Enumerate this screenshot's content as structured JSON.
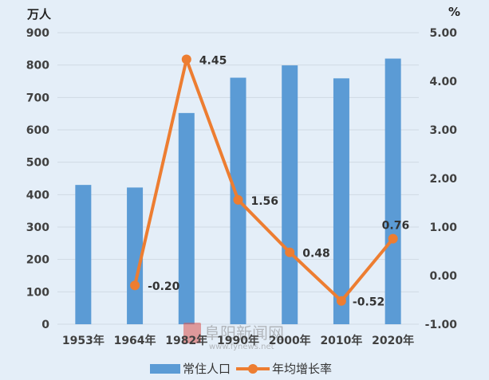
{
  "chart_data": {
    "type": "bar+line",
    "categories": [
      "1953年",
      "1964年",
      "1982年",
      "1990年",
      "2000年",
      "2010年",
      "2020年"
    ],
    "series": [
      {
        "name": "常住人口",
        "type": "bar",
        "axis": "left",
        "values": [
          430,
          422,
          652,
          761,
          799,
          759,
          820
        ],
        "color": "#5b9bd5"
      },
      {
        "name": "年均增长率",
        "type": "line",
        "axis": "right",
        "values": [
          null,
          -0.2,
          4.45,
          1.56,
          0.48,
          -0.52,
          0.76
        ],
        "labels": [
          null,
          "-0.20",
          "4.45",
          "1.56",
          "0.48",
          "-0.52",
          "0.76"
        ],
        "color": "#ed7d31"
      }
    ],
    "y_left": {
      "unit": "万人",
      "range": [
        0,
        900
      ],
      "ticks": [
        "0",
        "100",
        "200",
        "300",
        "400",
        "500",
        "600",
        "700",
        "800",
        "900"
      ]
    },
    "y_right": {
      "unit": "%",
      "range": [
        -1.0,
        5.0
      ],
      "ticks": [
        "-1.00",
        "0.00",
        "1.00",
        "2.00",
        "3.00",
        "4.00",
        "5.00"
      ]
    },
    "grid": true,
    "legend": "bottom-center"
  },
  "watermark": {
    "text": "阜阳新闻网",
    "subtext": "www.fynews.net"
  }
}
